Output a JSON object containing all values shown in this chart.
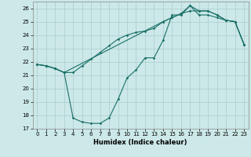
{
  "xlabel": "Humidex (Indice chaleur)",
  "background_color": "#cce8e8",
  "grid_color": "#aacccc",
  "line_color": "#1a7068",
  "xlim": [
    -0.5,
    23.5
  ],
  "ylim": [
    17,
    26.5
  ],
  "yticks": [
    17,
    18,
    19,
    20,
    21,
    22,
    23,
    24,
    25,
    26
  ],
  "xticks": [
    0,
    1,
    2,
    3,
    4,
    5,
    6,
    7,
    8,
    9,
    10,
    11,
    12,
    13,
    14,
    15,
    16,
    17,
    18,
    19,
    20,
    21,
    22,
    23
  ],
  "line1_x": [
    0,
    1,
    2,
    3,
    4,
    5,
    6,
    7,
    8,
    9,
    10,
    11,
    12,
    13,
    14,
    15,
    16,
    17,
    18,
    19,
    20,
    21,
    22,
    23
  ],
  "line1_y": [
    21.8,
    21.7,
    21.5,
    21.2,
    21.2,
    21.7,
    22.2,
    22.7,
    23.2,
    23.7,
    24.0,
    24.2,
    24.3,
    24.5,
    25.0,
    25.3,
    25.6,
    25.8,
    25.8,
    25.8,
    25.5,
    25.1,
    25.0,
    23.3
  ],
  "line2_x": [
    0,
    1,
    2,
    3,
    4,
    5,
    6,
    7,
    8,
    9,
    10,
    11,
    12,
    13,
    14,
    15,
    16,
    17,
    18,
    19,
    20,
    21,
    22,
    23
  ],
  "line2_y": [
    21.8,
    21.7,
    21.5,
    21.2,
    17.8,
    17.5,
    17.4,
    17.4,
    17.8,
    19.2,
    20.8,
    21.4,
    22.3,
    22.3,
    23.6,
    25.5,
    25.5,
    26.2,
    25.5,
    25.5,
    25.3,
    25.1,
    25.0,
    23.3
  ],
  "line3_x": [
    0,
    1,
    2,
    3,
    14,
    15,
    16,
    17,
    18,
    19,
    20,
    21,
    22,
    23
  ],
  "line3_y": [
    21.8,
    21.7,
    21.5,
    21.2,
    25.0,
    25.3,
    25.6,
    26.2,
    25.8,
    25.8,
    25.5,
    25.1,
    25.0,
    23.3
  ]
}
